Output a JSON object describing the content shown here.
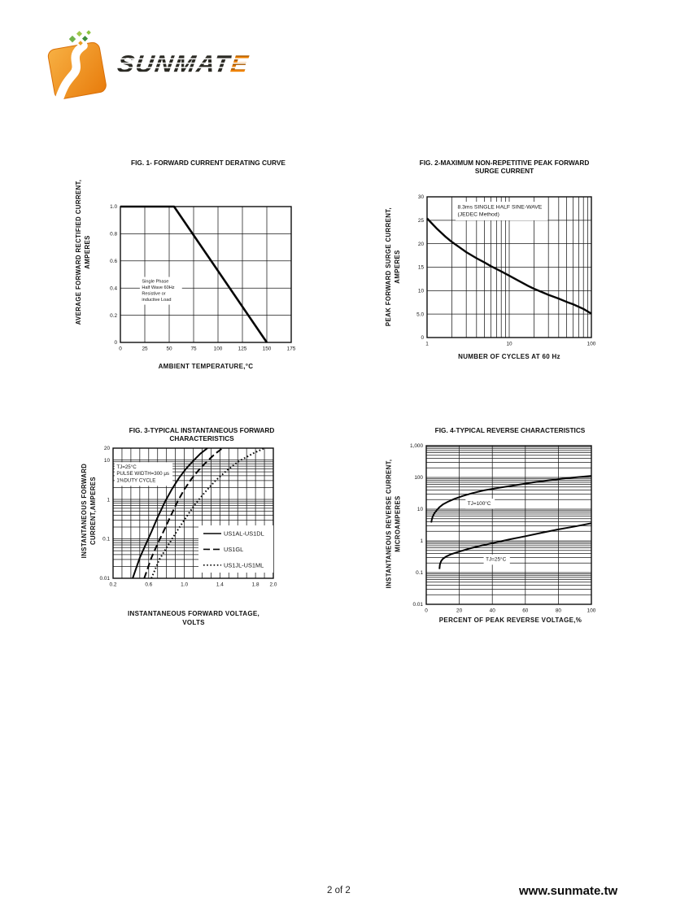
{
  "logo": {
    "brand_main": "SUNMAT",
    "brand_accent": "E"
  },
  "footer": {
    "page": "2 of 2",
    "website": "www.sunmate.tw"
  },
  "colors": {
    "tile_orange_light": "#f7b043",
    "tile_orange_dark": "#e87c0c",
    "accent_orange": "#ef8200",
    "ink": "#161616",
    "sparkle_green": "#6fb14a"
  },
  "chart_data": [
    {
      "type": "line",
      "title": "FIG. 1- FORWARD CURRENT DERATING CURVE",
      "xlabel": "AMBIENT TEMPERATURE,°C",
      "ylabel": "AVERAGE FORWARD RECTIFIED CURRENT,\nAMPERES",
      "x": {
        "scale": "linear",
        "min": 0,
        "max": 175,
        "tick_values": [
          0,
          25,
          50,
          75,
          100,
          125,
          150,
          175
        ],
        "tick_labels": [
          "0",
          "25",
          "50",
          "75",
          "100",
          "125",
          "150",
          "175"
        ]
      },
      "y": {
        "scale": "linear",
        "min": 0,
        "max": 1,
        "tick_values": [
          0,
          0.2,
          0.4,
          0.6,
          0.8,
          1
        ],
        "tick_labels": [
          "0",
          "0.2",
          "0.4",
          "0.6",
          "0.8",
          "1.0"
        ]
      },
      "series": [
        {
          "name": "forward-current-derating",
          "dash": "solid",
          "points": [
            [
              0,
              1
            ],
            [
              55,
              1
            ],
            [
              150,
              0
            ]
          ]
        }
      ],
      "annotations": [
        {
          "x": 22,
          "y": 0.47,
          "boxed": true,
          "lines": [
            "Single Phase",
            "Half Wave 60Hz",
            "Resistive or",
            "inductive Load"
          ]
        }
      ]
    },
    {
      "type": "line",
      "title": "FIG. 2-MAXIMUM NON-REPETITIVE PEAK FORWARD\nSURGE CURRENT",
      "xlabel": "NUMBER OF CYCLES AT 60 Hz",
      "ylabel": "PEAK  FORWARD SURGE CURRENT,\nAMPERES",
      "x": {
        "scale": "log",
        "min": 1,
        "max": 100,
        "tick_values": [
          1,
          10,
          100
        ],
        "tick_labels": [
          "1",
          "10",
          "100"
        ],
        "minor": "log"
      },
      "y": {
        "scale": "linear",
        "min": 0,
        "max": 30,
        "tick_values": [
          0,
          5,
          10,
          15,
          20,
          25,
          30
        ],
        "tick_labels": [
          "0",
          "5.0",
          "10",
          "15",
          "20",
          "25",
          "30"
        ]
      },
      "series": [
        {
          "name": "peak-forward-surge-current",
          "dash": "solid",
          "points": [
            [
              1,
              25.4
            ],
            [
              1.3,
              23.3
            ],
            [
              1.7,
              21.4
            ],
            [
              2,
              20.4
            ],
            [
              2.5,
              19.2
            ],
            [
              3,
              18.2
            ],
            [
              4,
              16.9
            ],
            [
              5,
              16
            ],
            [
              6,
              15.2
            ],
            [
              8,
              14.1
            ],
            [
              10,
              13.2
            ],
            [
              13,
              12.1
            ],
            [
              17,
              11
            ],
            [
              20,
              10.4
            ],
            [
              25,
              9.7
            ],
            [
              30,
              9.1
            ],
            [
              40,
              8.3
            ],
            [
              50,
              7.6
            ],
            [
              60,
              7.1
            ],
            [
              80,
              6.1
            ],
            [
              100,
              5.1
            ]
          ]
        }
      ],
      "annotations": [
        {
          "x": 2.35,
          "y": 28.6,
          "boxed": true,
          "lines": [
            "8.3ms SINGLE HALF SINE-WAVE",
            "(JEDEC Method)"
          ]
        }
      ]
    },
    {
      "type": "line",
      "title": "FIG. 3-TYPICAL INSTANTANEOUS FORWARD\nCHARACTERISTICS",
      "xlabel": "INSTANTANEOUS FORWARD VOLTAGE,\nVOLTS",
      "ylabel": "INSTANTANEOUS FORWARD\nCURRENT,AMPERES",
      "x": {
        "scale": "linear",
        "min": 0.2,
        "max": 2,
        "tick_values": [
          0.2,
          0.6,
          1,
          1.4,
          1.8,
          2
        ],
        "tick_labels": [
          "0.2",
          "0.6",
          "1.0",
          "1.4",
          "1.8",
          "2.0"
        ],
        "minor_step": 0.1
      },
      "y": {
        "scale": "log",
        "min": 0.01,
        "max": 20,
        "tick_values": [
          0.01,
          0.1,
          1,
          10,
          20
        ],
        "tick_labels": [
          "0.01",
          "0.1",
          "1",
          "10",
          "20"
        ],
        "minor": "log"
      },
      "series": [
        {
          "name": "US1AL-US1DL",
          "dash": "solid",
          "points": [
            [
              0.42,
              0.01
            ],
            [
              0.5,
              0.033
            ],
            [
              0.57,
              0.075
            ],
            [
              0.63,
              0.15
            ],
            [
              0.7,
              0.35
            ],
            [
              0.78,
              0.85
            ],
            [
              0.86,
              1.8
            ],
            [
              0.94,
              3.5
            ],
            [
              1.02,
              6
            ],
            [
              1.1,
              9.5
            ],
            [
              1.18,
              14.5
            ],
            [
              1.26,
              20
            ]
          ]
        },
        {
          "name": "US1GL",
          "dash": "dash",
          "points": [
            [
              0.55,
              0.01
            ],
            [
              0.63,
              0.033
            ],
            [
              0.7,
              0.075
            ],
            [
              0.77,
              0.16
            ],
            [
              0.84,
              0.35
            ],
            [
              0.92,
              0.85
            ],
            [
              1,
              1.8
            ],
            [
              1.08,
              3.3
            ],
            [
              1.16,
              5.5
            ],
            [
              1.25,
              9
            ],
            [
              1.34,
              14
            ],
            [
              1.43,
              20
            ]
          ]
        },
        {
          "name": "US1JL-US1ML",
          "dash": "dot",
          "points": [
            [
              0.63,
              0.01
            ],
            [
              0.72,
              0.03
            ],
            [
              0.82,
              0.07
            ],
            [
              0.92,
              0.16
            ],
            [
              1.02,
              0.35
            ],
            [
              1.12,
              0.75
            ],
            [
              1.23,
              1.5
            ],
            [
              1.35,
              3
            ],
            [
              1.48,
              5.5
            ],
            [
              1.62,
              9.5
            ],
            [
              1.78,
              15
            ],
            [
              1.9,
              20
            ]
          ]
        }
      ],
      "annotations": [
        {
          "x": 0.24,
          "y": 8,
          "boxed": true,
          "lines": [
            "TJ=25°C",
            "PULSE WIDTH=300 μs",
            "1%DUTY CYCLE"
          ]
        }
      ],
      "legend": [
        {
          "label": "US1AL-US1DL",
          "dash": "solid"
        },
        {
          "label": "US1GL",
          "dash": "dash"
        },
        {
          "label": "US1JL-US1ML",
          "dash": "dot"
        }
      ]
    },
    {
      "type": "line",
      "title": "FIG. 4-TYPICAL REVERSE CHARACTERISTICS",
      "xlabel": "PERCENT OF PEAK REVERSE VOLTAGE,%",
      "ylabel": "INSTANTANEOUS REVERSE CURRENT,\nMICROAMPERES",
      "x": {
        "scale": "linear",
        "min": 0,
        "max": 100,
        "tick_values": [
          0,
          20,
          40,
          60,
          80,
          100
        ],
        "tick_labels": [
          "0",
          "20",
          "40",
          "60",
          "80",
          "100"
        ]
      },
      "y": {
        "scale": "log",
        "min": 0.01,
        "max": 1000,
        "tick_values": [
          0.01,
          0.1,
          1,
          10,
          100,
          1000
        ],
        "tick_labels": [
          "0.01",
          "0.1",
          "1",
          "10",
          "100",
          "1,000"
        ],
        "minor": "log"
      },
      "series": [
        {
          "name": "TJ=100°C",
          "dash": "solid",
          "points": [
            [
              3,
              3.8
            ],
            [
              3.5,
              5
            ],
            [
              4,
              6
            ],
            [
              5,
              7.5
            ],
            [
              6.5,
              9.5
            ],
            [
              8,
              11.5
            ],
            [
              10,
              14
            ],
            [
              13,
              17
            ],
            [
              17,
              21
            ],
            [
              22,
              26
            ],
            [
              28,
              32
            ],
            [
              35,
              39
            ],
            [
              45,
              48
            ],
            [
              55,
              58
            ],
            [
              65,
              70
            ],
            [
              75,
              82
            ],
            [
              85,
              95
            ],
            [
              100,
              112
            ]
          ]
        },
        {
          "name": "TJ=25°C",
          "dash": "solid",
          "points": [
            [
              8,
              0.13
            ],
            [
              8.3,
              0.18
            ],
            [
              9,
              0.23
            ],
            [
              10,
              0.27
            ],
            [
              12,
              0.32
            ],
            [
              15,
              0.38
            ],
            [
              20,
              0.46
            ],
            [
              26,
              0.57
            ],
            [
              33,
              0.7
            ],
            [
              40,
              0.85
            ],
            [
              50,
              1.1
            ],
            [
              60,
              1.4
            ],
            [
              70,
              1.8
            ],
            [
              80,
              2.3
            ],
            [
              90,
              2.85
            ],
            [
              100,
              3.6
            ]
          ]
        }
      ],
      "annotations": [
        {
          "x": 25,
          "y": 19,
          "boxed": true,
          "lines": [
            "TJ=100°C"
          ]
        },
        {
          "x": 36,
          "y": 0.33,
          "boxed": true,
          "lines": [
            "TJ=25°C"
          ]
        }
      ]
    }
  ]
}
